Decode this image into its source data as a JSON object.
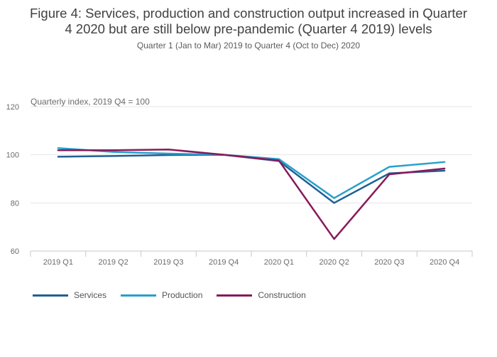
{
  "title_line1": "Figure 4: Services, production and construction output increased in Quarter",
  "title_line2": "4 2020 but are still below pre-pandemic (Quarter 4 2019) levels",
  "subtitle": "Quarter 1 (Jan to Mar) 2019 to Quarter 4 (Oct to Dec) 2020",
  "chart_data": {
    "type": "line",
    "title": "Figure 4: Services, production and construction output increased in Quarter 4 2020 but are still below pre-pandemic (Quarter 4 2019) levels",
    "subtitle": "Quarter 1 (Jan to Mar) 2019 to Quarter 4 (Oct to Dec) 2020",
    "ylabel": "Quarterly index, 2019 Q4 = 100",
    "xlabel": "",
    "categories": [
      "2019 Q1",
      "2019 Q2",
      "2019 Q3",
      "2019 Q4",
      "2020 Q1",
      "2020 Q2",
      "2020 Q3",
      "2020 Q4"
    ],
    "yticks": [
      60,
      80,
      100,
      120
    ],
    "ylim": [
      60,
      120
    ],
    "grid": true,
    "legend_position": "bottom-left",
    "series": [
      {
        "name": "Services",
        "color": "#206095",
        "values": [
          99.2,
          99.5,
          99.9,
          100,
          97.4,
          80.0,
          92.3,
          93.4
        ]
      },
      {
        "name": "Production",
        "color": "#27a0cc",
        "values": [
          102.8,
          101.2,
          100.5,
          100,
          98.2,
          82.0,
          95.0,
          97.0
        ]
      },
      {
        "name": "Construction",
        "color": "#871a5b",
        "values": [
          101.9,
          101.9,
          102.2,
          100,
          97.6,
          65.0,
          91.9,
          94.3
        ]
      }
    ]
  }
}
